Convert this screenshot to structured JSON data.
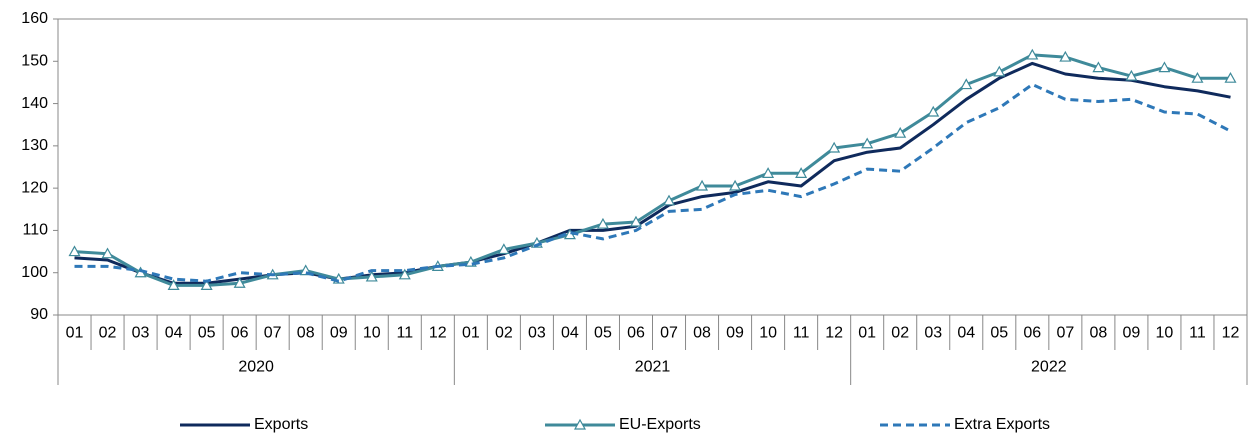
{
  "chart_data": {
    "type": "line",
    "categories": [
      "01",
      "02",
      "03",
      "04",
      "05",
      "06",
      "07",
      "08",
      "09",
      "10",
      "11",
      "12",
      "01",
      "02",
      "03",
      "04",
      "05",
      "06",
      "07",
      "08",
      "09",
      "10",
      "11",
      "12",
      "01",
      "02",
      "03",
      "04",
      "05",
      "06",
      "07",
      "08",
      "09",
      "10",
      "11",
      "12"
    ],
    "years": [
      "2020",
      "2021",
      "2022"
    ],
    "series": [
      {
        "name": "Exports",
        "color": "#0f2a5c",
        "style": "solid",
        "marker": "none",
        "values": [
          103.5,
          103,
          100,
          97.5,
          97.5,
          98.5,
          99.5,
          100,
          98.5,
          99.5,
          100,
          101.5,
          102.5,
          104.5,
          107,
          110,
          110,
          111,
          116,
          118,
          119,
          121.5,
          120.5,
          126.5,
          128.5,
          129.5,
          135,
          141,
          146,
          149.5,
          147,
          146,
          145.5,
          144,
          143,
          141.5
        ]
      },
      {
        "name": "EU-Exports",
        "color": "#3f8a9a",
        "style": "solid",
        "marker": "triangle",
        "values": [
          105,
          104.5,
          100,
          97,
          97,
          97.5,
          99.5,
          100.5,
          98.5,
          99,
          99.5,
          101.5,
          102.5,
          105.5,
          107,
          109,
          111.5,
          112,
          117,
          120.5,
          120.5,
          123.5,
          123.5,
          129.5,
          130.5,
          133,
          138,
          144.5,
          147.5,
          151.5,
          151,
          148.5,
          146.5,
          148.5,
          146,
          146
        ]
      },
      {
        "name": "Extra Exports",
        "color": "#2e78b8",
        "style": "dashed",
        "marker": "none",
        "values": [
          101.5,
          101.5,
          100.5,
          98.5,
          98,
          100,
          99.5,
          100,
          98,
          100.5,
          100.5,
          101.5,
          102,
          103.5,
          106.5,
          109.5,
          108,
          110,
          114.5,
          115,
          118.5,
          119.5,
          118,
          121,
          124.5,
          124,
          129.5,
          135.5,
          139,
          144.5,
          141,
          140.5,
          141,
          138,
          137.5,
          133.5
        ]
      }
    ],
    "ylim": [
      90,
      160
    ],
    "yticks": [
      90,
      100,
      110,
      120,
      130,
      140,
      150,
      160
    ],
    "grid": false,
    "legend": "bottom"
  }
}
